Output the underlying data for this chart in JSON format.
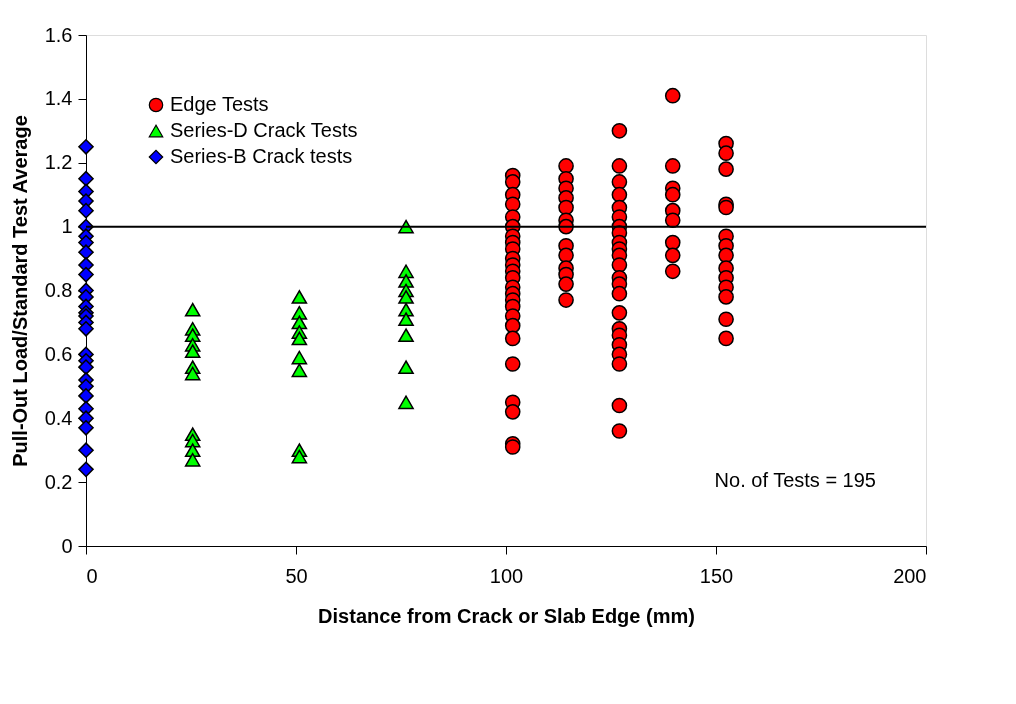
{
  "chart_data": {
    "type": "scatter",
    "xlabel": "Distance from Crack or Slab Edge (mm)",
    "ylabel": "Pull-Out Load/Standard Test Average",
    "xlim": [
      0,
      200
    ],
    "xticks": [
      0,
      50,
      100,
      150,
      200
    ],
    "ylim": [
      0,
      1.6
    ],
    "yticks": [
      0,
      0.2,
      0.4,
      0.6,
      0.8,
      1,
      1.2,
      1.4,
      1.6
    ],
    "grid": false,
    "legend": "top left",
    "series": [
      {
        "name": "Edge Tests",
        "color": "#ff0000",
        "marker": "circle",
        "x": [
          101.6,
          101.6,
          101.6,
          101.6,
          101.6,
          101.6,
          101.6,
          101.6,
          101.6,
          101.6,
          101.6,
          101.6,
          101.6,
          101.6,
          101.6,
          101.6,
          101.6,
          101.6,
          101.6,
          101.6,
          101.6,
          101.6,
          101.6,
          101.6,
          101.6,
          114.3,
          114.3,
          114.3,
          114.3,
          114.3,
          114.3,
          114.3,
          114.3,
          114.3,
          114.3,
          114.3,
          114.3,
          114.3,
          127,
          127,
          127,
          127,
          127,
          127,
          127,
          127,
          127,
          127,
          127,
          127,
          127,
          127,
          127,
          127,
          127,
          127,
          127,
          127,
          127,
          127,
          127,
          139.7,
          139.7,
          139.7,
          139.7,
          139.7,
          139.7,
          139.7,
          139.7,
          139.7,
          152.4,
          152.4,
          152.4,
          152.4,
          152.4,
          152.4,
          152.4,
          152.4,
          152.4,
          152.4,
          152.4,
          152.4,
          152.4,
          152.4
        ],
        "values": [
          1.16,
          1.14,
          1.1,
          1.07,
          1.03,
          1.0,
          0.97,
          0.95,
          0.93,
          0.9,
          0.88,
          0.86,
          0.84,
          0.81,
          0.79,
          0.77,
          0.75,
          0.72,
          0.69,
          0.65,
          0.57,
          0.45,
          0.42,
          0.32,
          0.31,
          1.19,
          1.15,
          1.12,
          1.09,
          1.06,
          1.02,
          1.0,
          0.94,
          0.91,
          0.87,
          0.85,
          0.82,
          0.77,
          1.3,
          1.19,
          1.14,
          1.1,
          1.06,
          1.03,
          1.0,
          0.98,
          0.95,
          0.93,
          0.91,
          0.88,
          0.84,
          0.82,
          0.79,
          0.73,
          0.68,
          0.66,
          0.63,
          0.6,
          0.57,
          0.44,
          0.36,
          1.41,
          1.19,
          1.12,
          1.1,
          1.05,
          1.02,
          0.95,
          0.91,
          0.86,
          1.26,
          1.23,
          1.18,
          1.07,
          1.06,
          0.97,
          0.94,
          0.91,
          0.87,
          0.84,
          0.81,
          0.78,
          0.71,
          0.65
        ]
      },
      {
        "name": "Series-D Crack Tests",
        "color": "#00ff00",
        "marker": "triangle",
        "x": [
          25.4,
          25.4,
          25.4,
          25.4,
          25.4,
          25.4,
          25.4,
          25.4,
          25.4,
          25.4,
          25.4,
          50.8,
          50.8,
          50.8,
          50.8,
          50.8,
          50.8,
          50.8,
          50.8,
          50.8,
          76.2,
          76.2,
          76.2,
          76.2,
          76.2,
          76.2,
          76.2,
          76.2,
          76.2,
          76.2
        ],
        "values": [
          0.74,
          0.68,
          0.66,
          0.63,
          0.61,
          0.56,
          0.54,
          0.35,
          0.33,
          0.3,
          0.27,
          0.78,
          0.73,
          0.7,
          0.67,
          0.65,
          0.59,
          0.55,
          0.3,
          0.28,
          1.0,
          0.86,
          0.83,
          0.8,
          0.78,
          0.74,
          0.71,
          0.66,
          0.56,
          0.45
        ]
      },
      {
        "name": "Series-B Crack tests",
        "color": "#0000ff",
        "marker": "diamond",
        "x": [
          0,
          0,
          0,
          0,
          0,
          0,
          0,
          0,
          0,
          0,
          0,
          0,
          0,
          0,
          0,
          0,
          0,
          0,
          0,
          0,
          0,
          0,
          0,
          0,
          0,
          0,
          0,
          0,
          0
        ],
        "values": [
          1.25,
          1.15,
          1.11,
          1.08,
          1.05,
          1.0,
          0.97,
          0.95,
          0.92,
          0.88,
          0.85,
          0.8,
          0.78,
          0.75,
          0.73,
          0.72,
          0.7,
          0.68,
          0.6,
          0.58,
          0.56,
          0.52,
          0.5,
          0.47,
          0.43,
          0.4,
          0.37,
          0.3,
          0.24
        ]
      }
    ],
    "ref_lines": [
      {
        "axis": "y",
        "value": 1,
        "color": "#000000"
      }
    ],
    "annotations": [
      "No. of Tests = 195"
    ]
  }
}
